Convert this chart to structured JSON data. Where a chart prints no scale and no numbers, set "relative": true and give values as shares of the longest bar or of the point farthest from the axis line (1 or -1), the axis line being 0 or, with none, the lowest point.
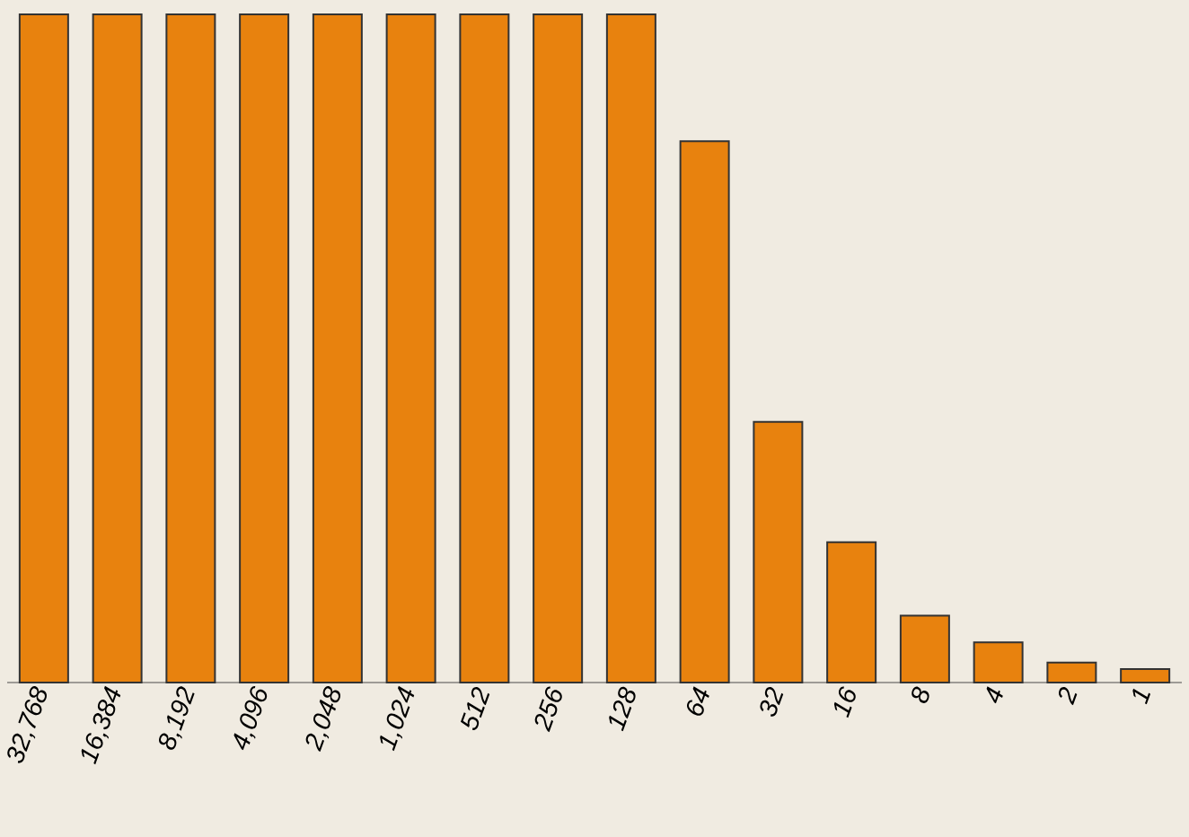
{
  "chart_data": {
    "type": "bar",
    "relative": true,
    "color": "#e8820e",
    "categories": [
      "32,768",
      "16,384",
      "8,192",
      "4,096",
      "2,048",
      "1,024",
      "512",
      "256",
      "128",
      "64",
      "32",
      "16",
      "8",
      "4",
      "2",
      "1"
    ],
    "values": [
      1,
      1,
      1,
      1,
      1,
      1,
      1,
      1,
      1,
      0.81,
      0.39,
      0.21,
      0.1,
      0.06,
      0.03,
      0.02
    ]
  }
}
